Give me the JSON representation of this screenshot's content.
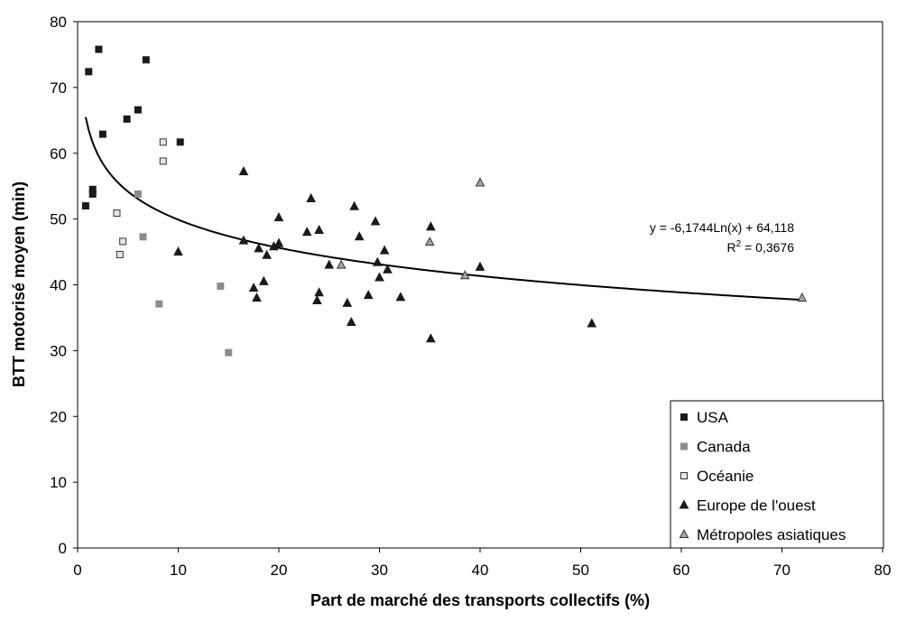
{
  "chart_data": {
    "type": "scatter",
    "xlabel": "Part de marché des transports collectifs (%)",
    "ylabel": "BTT motorisé moyen (min)",
    "xlim": [
      0,
      80
    ],
    "ylim": [
      0,
      80
    ],
    "xticks": [
      0,
      10,
      20,
      30,
      40,
      50,
      60,
      70,
      80
    ],
    "yticks": [
      0,
      10,
      20,
      30,
      40,
      50,
      60,
      70,
      80
    ],
    "grid": false,
    "legend_position": "bottom-right",
    "series": [
      {
        "name": "USA",
        "marker": "square",
        "fill": "#1a1a1a",
        "stroke": "#1a1a1a",
        "points": [
          [
            0.8,
            52.0
          ],
          [
            1.1,
            72.4
          ],
          [
            1.5,
            53.8
          ],
          [
            1.5,
            54.5
          ],
          [
            2.1,
            75.8
          ],
          [
            2.5,
            62.9
          ],
          [
            4.9,
            65.2
          ],
          [
            6.0,
            66.6
          ],
          [
            6.8,
            74.2
          ],
          [
            10.2,
            61.7
          ]
        ]
      },
      {
        "name": "Canada",
        "marker": "square",
        "fill": "#8c8c8c",
        "stroke": "#8c8c8c",
        "points": [
          [
            6.0,
            53.8
          ],
          [
            6.5,
            47.3
          ],
          [
            8.1,
            37.1
          ],
          [
            14.2,
            39.8
          ],
          [
            15.0,
            29.7
          ]
        ]
      },
      {
        "name": "Océanie",
        "marker": "square",
        "fill": "#e6e6e6",
        "stroke": "#333333",
        "points": [
          [
            3.9,
            50.9
          ],
          [
            4.2,
            44.6
          ],
          [
            4.5,
            46.6
          ],
          [
            8.5,
            58.8
          ],
          [
            8.5,
            61.7
          ]
        ]
      },
      {
        "name": "Europe de l'ouest",
        "marker": "triangle",
        "fill": "#1a1a1a",
        "stroke": "#1a1a1a",
        "points": [
          [
            10.0,
            45.0
          ],
          [
            16.5,
            57.2
          ],
          [
            16.5,
            46.7
          ],
          [
            17.5,
            39.5
          ],
          [
            17.8,
            38.0
          ],
          [
            18.0,
            45.5
          ],
          [
            18.5,
            40.5
          ],
          [
            18.8,
            44.5
          ],
          [
            19.5,
            45.8
          ],
          [
            20.0,
            50.2
          ],
          [
            20.0,
            46.3
          ],
          [
            22.8,
            48.0
          ],
          [
            23.2,
            53.1
          ],
          [
            23.8,
            37.6
          ],
          [
            24.0,
            38.8
          ],
          [
            24.0,
            48.3
          ],
          [
            25.0,
            43.0
          ],
          [
            26.8,
            37.2
          ],
          [
            27.2,
            34.3
          ],
          [
            27.5,
            51.9
          ],
          [
            28.0,
            47.3
          ],
          [
            28.9,
            38.4
          ],
          [
            29.6,
            49.6
          ],
          [
            29.8,
            43.4
          ],
          [
            30.0,
            41.1
          ],
          [
            30.5,
            45.2
          ],
          [
            30.8,
            42.3
          ],
          [
            32.1,
            38.1
          ],
          [
            35.1,
            31.8
          ],
          [
            35.1,
            48.8
          ],
          [
            40.0,
            42.7
          ],
          [
            51.1,
            34.1
          ]
        ]
      },
      {
        "name": "Métropoles asiatiques",
        "marker": "triangle",
        "fill": "#a6a6a6",
        "stroke": "#333333",
        "points": [
          [
            26.2,
            43.0
          ],
          [
            35.0,
            46.5
          ],
          [
            38.5,
            41.4
          ],
          [
            40.0,
            55.5
          ],
          [
            72.0,
            38.0
          ]
        ]
      }
    ],
    "trendline": {
      "type": "logarithmic",
      "a": -6.1744,
      "b": 64.118,
      "x_range": [
        0.8,
        72
      ],
      "equation_label": "y = -6,1744Ln(x) + 64,118",
      "r2_label_prefix": "R",
      "r2_label_sup": "2",
      "r2_label_value": " = 0,3676"
    }
  }
}
